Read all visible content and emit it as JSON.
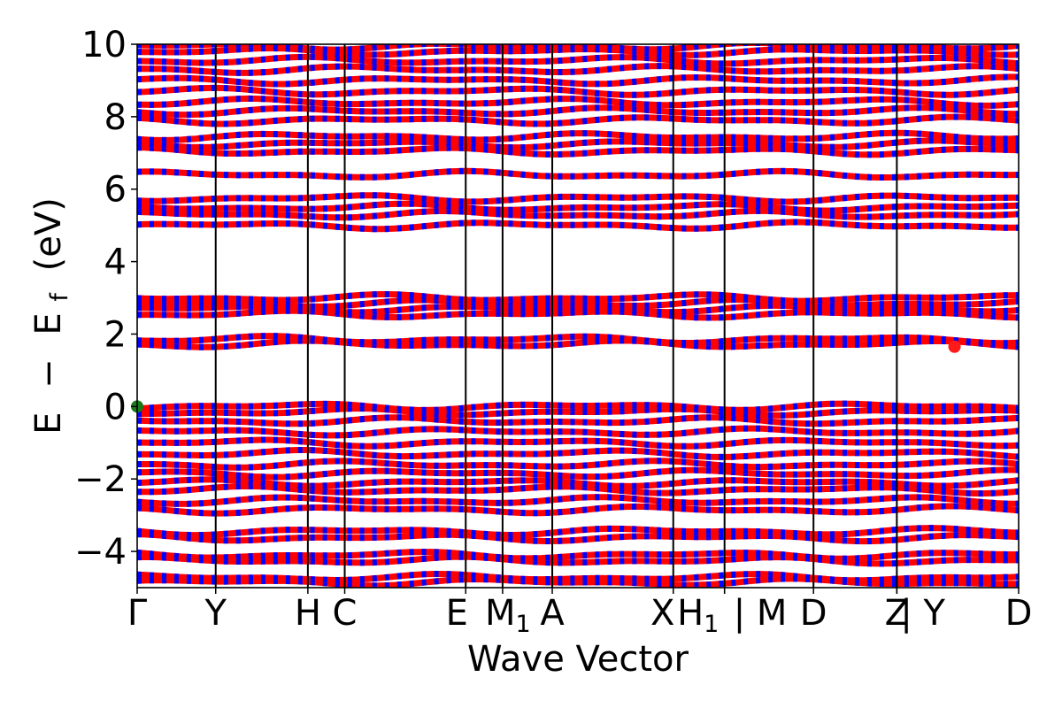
{
  "chart_data": {
    "type": "line",
    "xlabel": "Wave Vector",
    "ylabel_parts": {
      "E": "E",
      "minus": "−",
      "base": "E",
      "sub": "f",
      "unit": "(eV)"
    },
    "ylim": [
      -5,
      10
    ],
    "yticks": [
      -4,
      -2,
      0,
      2,
      4,
      6,
      8,
      10
    ],
    "ytick_labels": [
      "−4",
      "−2",
      "0",
      "2",
      "4",
      "6",
      "8",
      "10"
    ],
    "x_range": [
      0,
      11
    ],
    "kpoints": [
      {
        "label": "Γ",
        "sub": "",
        "x": 0.0
      },
      {
        "label": "Y",
        "sub": "",
        "x": 0.98
      },
      {
        "label": "H",
        "sub": "",
        "x": 2.13
      },
      {
        "label": "C",
        "sub": "",
        "x": 2.59
      },
      {
        "label": "E",
        "sub": "",
        "x": 4.1
      },
      {
        "label": "M",
        "sub": "1",
        "x": 4.56
      },
      {
        "label": "A",
        "sub": "",
        "x": 5.18
      },
      {
        "label": "X",
        "sub": "",
        "x": 6.69
      },
      {
        "label": "H",
        "sub": "1",
        "x": 7.33
      },
      {
        "label": "| M",
        "sub": "",
        "x": 7.33
      },
      {
        "label": "D",
        "sub": "",
        "x": 8.44
      },
      {
        "label": "Z",
        "sub": "",
        "x": 9.48
      },
      {
        "label": "| Y",
        "sub": "",
        "x": 9.48
      },
      {
        "label": "D",
        "sub": "",
        "x": 11.0
      }
    ],
    "dividers_x": [
      0.98,
      2.13,
      2.59,
      4.1,
      4.56,
      5.18,
      6.69,
      7.33,
      8.44,
      9.48
    ],
    "band_groups": [
      {
        "name": "deep valence",
        "energies": [
          -4.85,
          -4.72
        ]
      },
      {
        "name": "deep valence",
        "energies": [
          -4.25,
          -4.1
        ]
      },
      {
        "name": "deep valence",
        "energies": [
          -3.62,
          -3.45
        ]
      },
      {
        "name": "valence",
        "energies": [
          -2.85,
          -2.6,
          -2.3,
          -2.1,
          -1.85,
          -1.6,
          -1.3,
          -1.0,
          -0.7,
          -0.4,
          -0.15,
          0.0
        ]
      },
      {
        "name": "conduction",
        "energies": [
          1.72,
          1.85
        ]
      },
      {
        "name": "conduction",
        "energies": [
          2.55,
          2.7,
          2.85,
          3.0
        ]
      },
      {
        "name": "conduction",
        "energies": [
          5.0,
          5.3,
          5.5,
          5.75
        ]
      },
      {
        "name": "conduction",
        "energies": [
          6.4
        ]
      },
      {
        "name": "conduction",
        "energies": [
          7.05,
          7.25,
          7.45
        ]
      },
      {
        "name": "high conduction",
        "energies": [
          7.9,
          8.15,
          8.4,
          8.7,
          9.0,
          9.3,
          9.55,
          9.8,
          9.95
        ]
      }
    ],
    "markers": [
      {
        "name": "VBM",
        "x": 0.0,
        "y": 0.0,
        "color": "#1a7a1a"
      },
      {
        "name": "CBM",
        "x": 10.2,
        "y": 1.65,
        "color": "#ff1a1a"
      }
    ],
    "colors": {
      "spin_up": "#ff0000",
      "spin_down": "#0000ff",
      "divider": "#000000"
    }
  }
}
